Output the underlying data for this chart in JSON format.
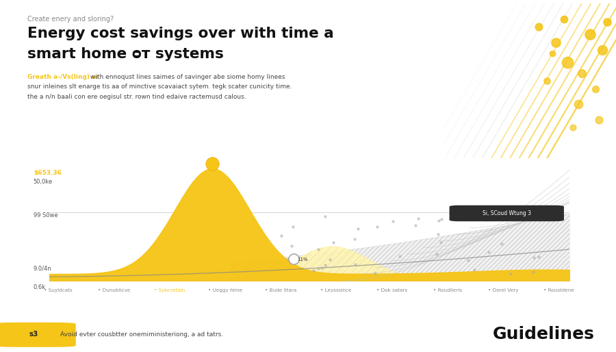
{
  "title_line1": "Energy cost savings over with time a",
  "title_line2": "smart home ᴑᴛ systems",
  "subtitle": "Create enery and sloring?",
  "description_line1_yellow": "Greath a-/Vs(ling) or",
  "description_line1_rest": " with ennoqust lines saimes of savinger abe siome homy linees",
  "description_line2": "snur inleines slt enarge tis aa of minctive scavaiact sytem. tegk scater cunicity time.",
  "description_line3": "the a n/n baali con ere oegisul str. rown tind edaive ractemusd calous.",
  "months": [
    "Suyldcats",
    "Dunublicve",
    "Sybcretion",
    "Ueggy hime",
    "Bude litara",
    "Leysssince",
    "Dok satars",
    "Roudileris",
    "Dorel Very",
    "Rouoldene"
  ],
  "background_color": "#ffffff",
  "gold_color": "#F5C518",
  "dark_gold": "#E8A800",
  "gray_color": "#C8C8C8",
  "light_gray": "#DCDCDC",
  "dark_color": "#2d2d2d",
  "footer_text": "Avoid evter cousbtter onemiministeriong, a ad tatrs.",
  "footer_number": "s3",
  "guidelines_text": "Guidelines",
  "label_savings": "$653.36",
  "label_50ke": "50,0ke",
  "label_99": "99 S0we",
  "label_base": "9.0/4n",
  "label_0k": "0.6k",
  "legend_label": "Si, SCoud Wtung 3"
}
